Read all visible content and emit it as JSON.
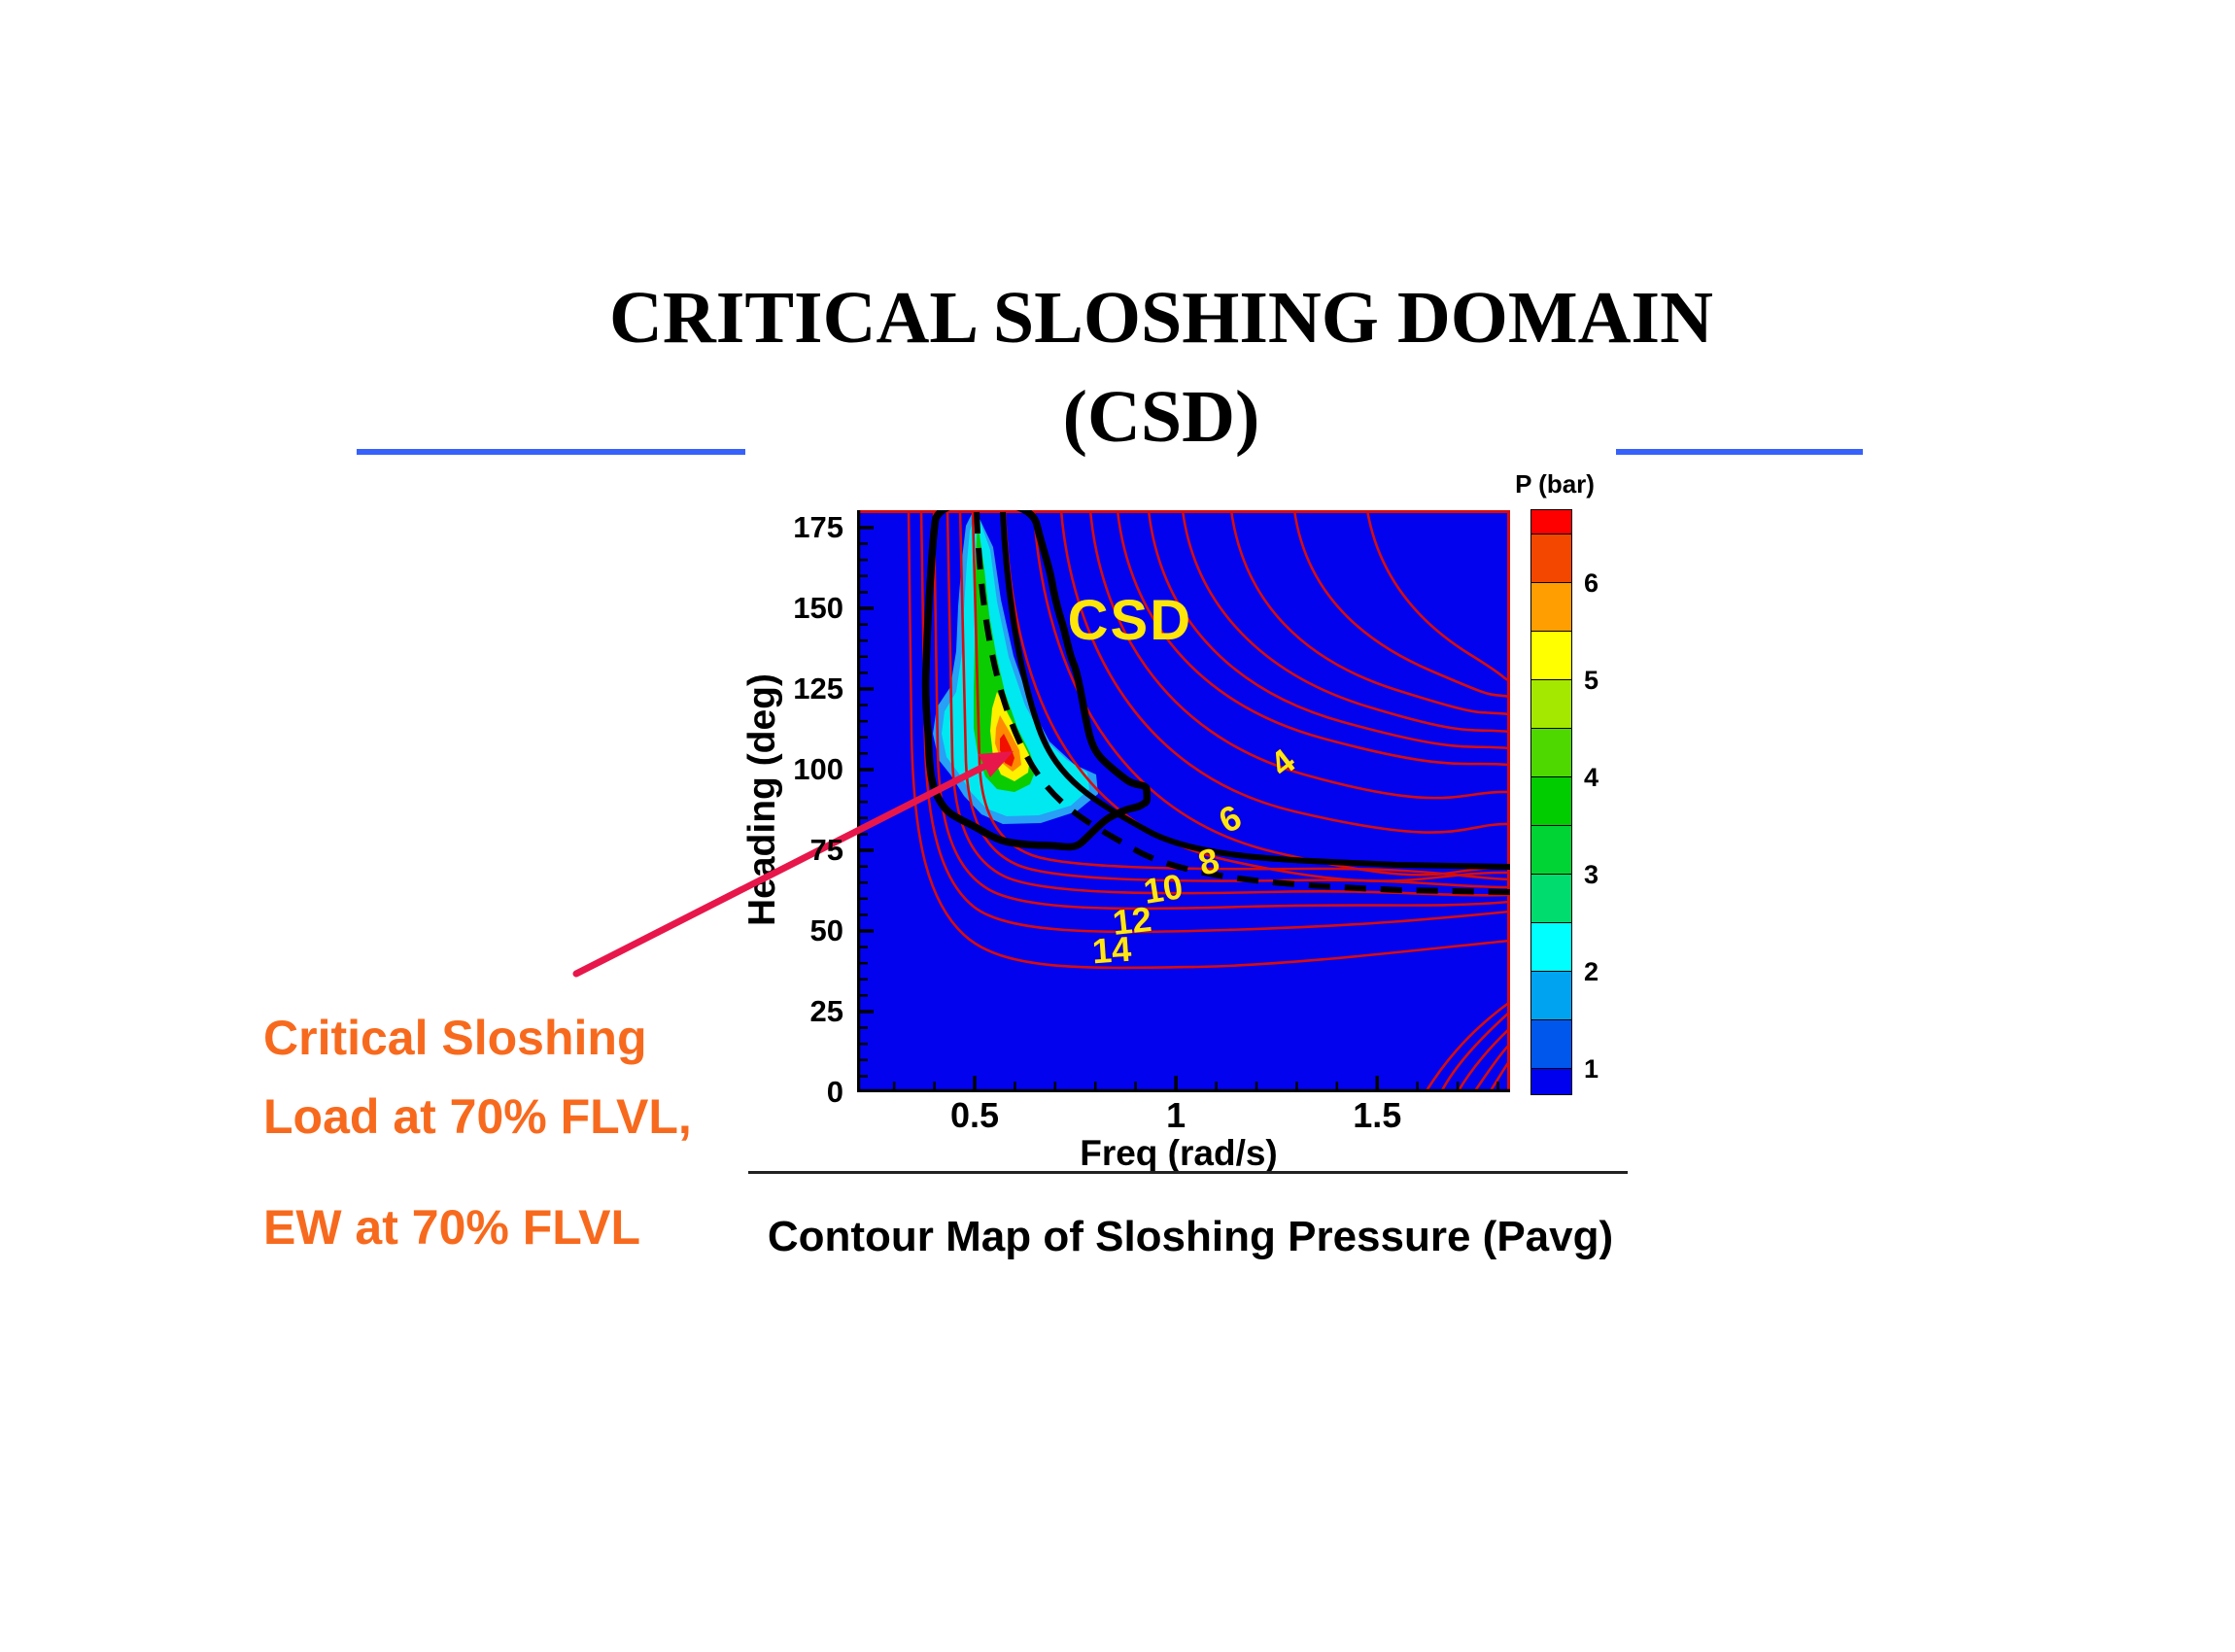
{
  "slide": {
    "title_line1": "CRITICAL SLOSHING DOMAIN",
    "title_line2": "(CSD)",
    "caption": "Contour Map of Sloshing Pressure (Pavg)",
    "annotation": {
      "line1": "Critical Sloshing",
      "line2": "Load at 70% FLVL,",
      "line3": "EW at 70% FLVL",
      "color": "#F76A1E"
    },
    "accent_rule_color": "#3761FB",
    "arrow_color": "#E8174B"
  },
  "chart_data": {
    "type": "heatmap",
    "title": "Contour Map of Sloshing Pressure (Pavg)",
    "xlabel": "Freq (rad/s)",
    "ylabel": "Heading (deg)",
    "xlim": [
      0.208,
      1.83
    ],
    "ylim": [
      0,
      180.4
    ],
    "x_major_ticks": [
      {
        "v": 0.5,
        "label": "0.5"
      },
      {
        "v": 1.0,
        "label": "1"
      },
      {
        "v": 1.5,
        "label": "1.5"
      }
    ],
    "x_minor_step": 0.1,
    "y_major_ticks": [
      {
        "v": 0,
        "label": "0"
      },
      {
        "v": 25,
        "label": "25"
      },
      {
        "v": 50,
        "label": "50"
      },
      {
        "v": 75,
        "label": "75"
      },
      {
        "v": 100,
        "label": "100"
      },
      {
        "v": 125,
        "label": "125"
      },
      {
        "v": 150,
        "label": "150"
      },
      {
        "v": 175,
        "label": "175"
      }
    ],
    "y_minor_step": 5,
    "background_value_color": "#0202EF",
    "contour_line_color": "#D60D0D",
    "region_label": {
      "text": "CSD",
      "freq": 0.886,
      "heading": 146,
      "color": "#FFE60A"
    },
    "hotspot": {
      "freq": 0.59,
      "heading": 107,
      "peak_pressure_bar": 6.5
    },
    "contour_labels": [
      {
        "text": "4",
        "freq": 1.265,
        "heading": 102,
        "rot": -38
      },
      {
        "text": "6",
        "freq": 1.135,
        "heading": 84.5,
        "rot": -26
      },
      {
        "text": "8",
        "freq": 1.082,
        "heading": 71.5,
        "rot": -16
      },
      {
        "text": "10",
        "freq": 0.968,
        "heading": 63,
        "rot": -9
      },
      {
        "text": "12",
        "freq": 0.891,
        "heading": 53,
        "rot": -6
      },
      {
        "text": "14",
        "freq": 0.84,
        "heading": 44,
        "rot": -4
      }
    ],
    "colorbar": {
      "title": "P (bar)",
      "range": [
        0.73,
        6.75
      ],
      "ticks": [
        1,
        2,
        3,
        4,
        5,
        6
      ],
      "units_per_100px": 1,
      "segments": [
        {
          "from": 6.5,
          "to": 6.75,
          "color": "#FF0000"
        },
        {
          "from": 6.0,
          "to": 6.5,
          "color": "#F34700"
        },
        {
          "from": 5.5,
          "to": 6.0,
          "color": "#FF9E00"
        },
        {
          "from": 5.0,
          "to": 5.5,
          "color": "#FFFF00"
        },
        {
          "from": 4.5,
          "to": 5.0,
          "color": "#A4E800"
        },
        {
          "from": 4.0,
          "to": 4.5,
          "color": "#4FD800"
        },
        {
          "from": 3.5,
          "to": 4.0,
          "color": "#00CC00"
        },
        {
          "from": 3.0,
          "to": 3.5,
          "color": "#00D435"
        },
        {
          "from": 2.5,
          "to": 3.0,
          "color": "#00DC6E"
        },
        {
          "from": 2.0,
          "to": 2.5,
          "color": "#00FFFF"
        },
        {
          "from": 1.5,
          "to": 2.0,
          "color": "#00A3F0"
        },
        {
          "from": 1.0,
          "to": 1.5,
          "color": "#0057EB"
        },
        {
          "from": 0.73,
          "to": 1.0,
          "color": "#0000EE"
        }
      ]
    }
  }
}
